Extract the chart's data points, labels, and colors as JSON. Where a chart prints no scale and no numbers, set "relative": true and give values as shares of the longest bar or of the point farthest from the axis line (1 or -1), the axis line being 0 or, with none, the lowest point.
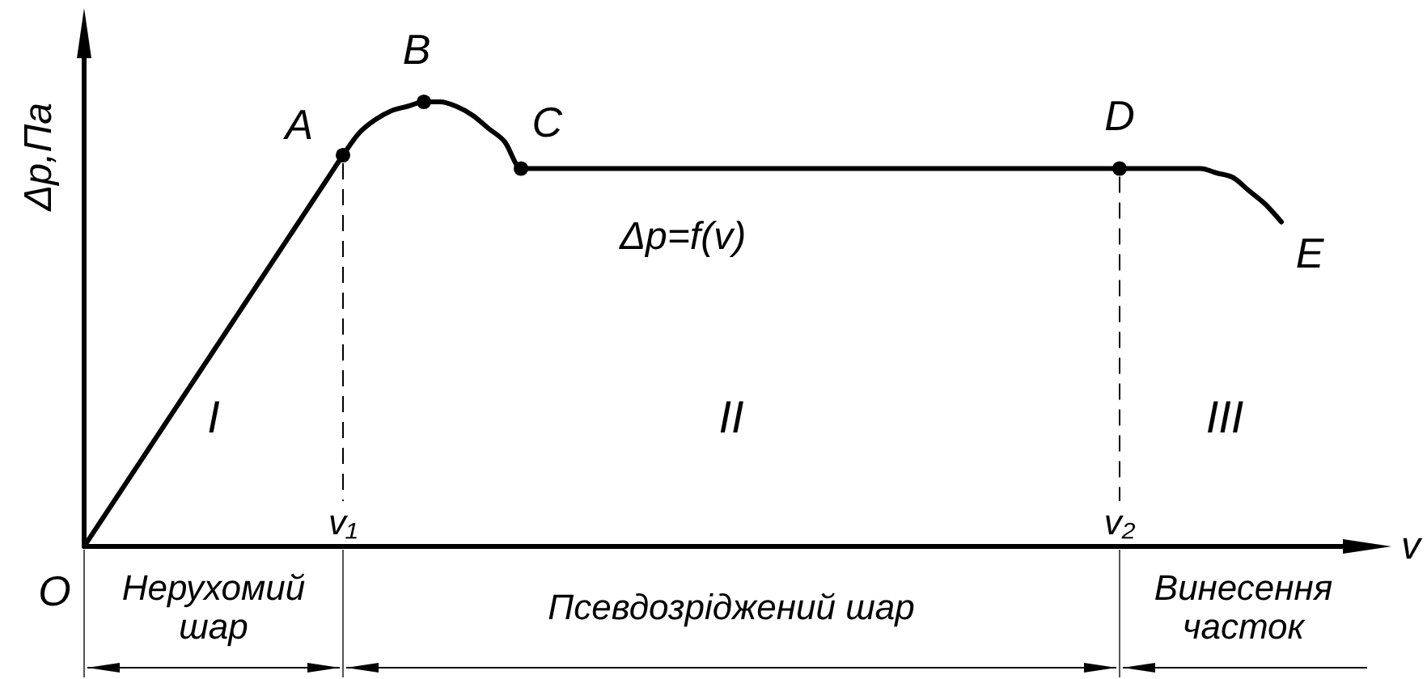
{
  "chart_data": {
    "type": "line",
    "relative": true,
    "xlabel": "v",
    "ylabel": "Δp,Па",
    "marker": "none",
    "categories": [
      null,
      null,
      null,
      null,
      null,
      null,
      null,
      null,
      null,
      null,
      null,
      null,
      null,
      null,
      null,
      null,
      "v₁",
      null,
      null,
      null,
      null,
      null,
      null,
      null,
      null,
      null,
      null,
      null,
      null,
      null,
      null,
      null,
      null,
      null,
      null,
      null,
      null,
      null,
      null,
      null,
      null,
      null,
      null,
      null,
      null,
      null,
      null,
      null,
      null,
      null,
      null,
      null,
      null,
      null,
      null,
      null,
      null,
      null,
      null,
      null,
      null,
      null,
      null,
      null,
      "v₂",
      null,
      null,
      null,
      null,
      null,
      null,
      null,
      null,
      null,
      null
    ],
    "series": [
      {
        "name": "Δp=f(v)",
        "color": "#000000",
        "values": [
          0,
          0.055,
          0.11,
          0.165,
          0.22,
          0.275,
          0.33,
          0.385,
          0.44,
          0.495,
          0.55,
          0.605,
          0.66,
          0.715,
          0.77,
          0.825,
          0.88,
          0.93,
          0.96,
          0.98,
          0.99,
          1,
          1,
          0.99,
          0.97,
          0.94,
          0.91,
          0.85,
          0.85,
          0.85,
          0.85,
          0.85,
          0.85,
          0.85,
          0.85,
          0.85,
          0.85,
          0.85,
          0.85,
          0.85,
          0.85,
          0.85,
          0.85,
          0.85,
          0.85,
          0.85,
          0.85,
          0.85,
          0.85,
          0.85,
          0.85,
          0.85,
          0.85,
          0.85,
          0.85,
          0.85,
          0.85,
          0.85,
          0.85,
          0.85,
          0.85,
          0.85,
          0.85,
          0.85,
          0.85,
          0.85,
          0.85,
          0.85,
          0.85,
          0.85,
          0.84,
          0.83,
          0.8,
          0.77,
          0.73
        ]
      },
      {
        "type": "scatter",
        "color": "#000000",
        "marker": "circle",
        "values": [
          null,
          null,
          null,
          null,
          null,
          null,
          null,
          null,
          null,
          null,
          null,
          null,
          null,
          null,
          null,
          null,
          0.88,
          null,
          null,
          null,
          null,
          1,
          null,
          null,
          null,
          null,
          null,
          0.85,
          null,
          null,
          null,
          null,
          null,
          null,
          null,
          null,
          null,
          null,
          null,
          null,
          null,
          null,
          null,
          null,
          null,
          null,
          null,
          null,
          null,
          null,
          null,
          null,
          null,
          null,
          null,
          null,
          null,
          null,
          null,
          null,
          null,
          null,
          null,
          null,
          0.85,
          null,
          null,
          null,
          null,
          null,
          null,
          null,
          null,
          null,
          null
        ]
      }
    ],
    "ref_lines": [
      {
        "axis": "x",
        "value": "v₁",
        "line_style": "dashed"
      },
      {
        "axis": "x",
        "value": "v₂",
        "line_style": "dashed"
      }
    ],
    "annotations": [
      {
        "text": "A",
        "x": "v₁",
        "y": 0.88
      },
      {
        "text": "B",
        "y": 1
      },
      {
        "text": "C",
        "y": 0.85
      },
      {
        "text": "D",
        "x": "v₂",
        "y": 0.85
      },
      "I",
      "II",
      "III",
      "Нерухомий шар",
      "Псевдозріджений шар",
      "Винесення часток",
      "O",
      "E"
    ]
  }
}
